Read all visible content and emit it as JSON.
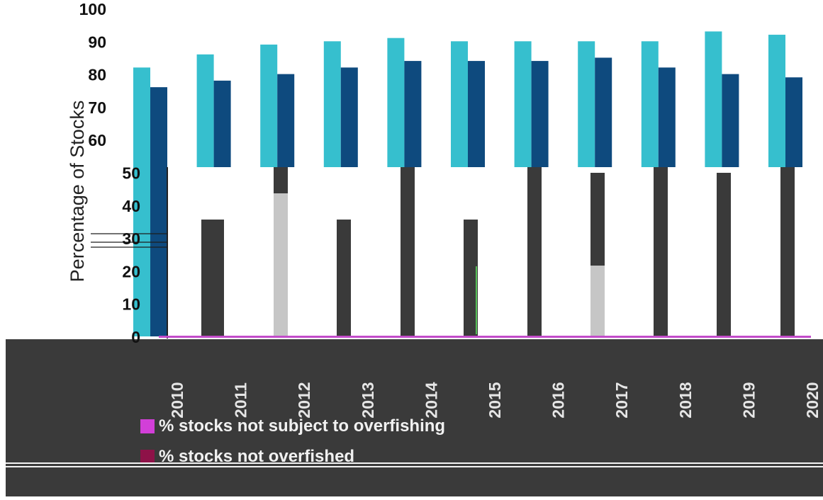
{
  "chart_data": {
    "type": "bar",
    "title": "",
    "xlabel": "",
    "ylabel": "Percentage of Stocks",
    "ylim": [
      0,
      100
    ],
    "y_ticks": [
      "0",
      "10",
      "20",
      "30",
      "40",
      "50",
      "60",
      "70",
      "80",
      "90",
      "100"
    ],
    "categories": [
      "2010",
      "2011",
      "2012",
      "2013",
      "2014",
      "2015",
      "2016",
      "2017",
      "2018",
      "2019",
      "2020"
    ],
    "series": [
      {
        "name": "% stocks not subject to overfishing",
        "values": [
          82,
          86,
          89,
          90,
          91,
          90,
          90,
          90,
          90,
          93,
          92
        ],
        "color": "#36bfce"
      },
      {
        "name": "% stocks not overfished",
        "values": [
          76,
          78,
          80,
          82,
          84,
          84,
          84,
          85,
          82,
          80,
          79
        ],
        "color": "#0e4a7e"
      }
    ],
    "legend": [
      {
        "label": "% stocks not subject to overfishing",
        "color": "#d23fd8"
      },
      {
        "label": "% stocks not overfished",
        "color": "#8e1248"
      }
    ],
    "legend_position": "bottom",
    "grid": false
  }
}
